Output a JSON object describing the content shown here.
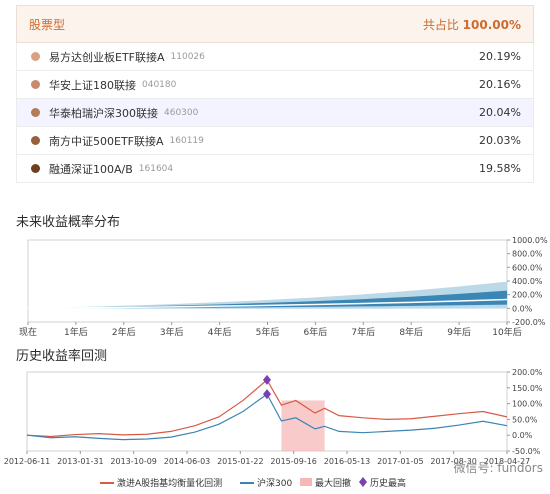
{
  "portfolio": {
    "type_label": "股票型",
    "total_label": "共占比",
    "total_pct": "100.00%",
    "funds": [
      {
        "name": "易方达创业板ETF联接A",
        "code": "110026",
        "weight": "20.19%",
        "color": "#d9a182"
      },
      {
        "name": "华安上证180联接",
        "code": "040180",
        "weight": "20.16%",
        "color": "#c98a69"
      },
      {
        "name": "华泰柏瑞沪深300联接",
        "code": "460300",
        "weight": "20.04%",
        "color": "#b77a56"
      },
      {
        "name": "南方中证500ETF联接A",
        "code": "160119",
        "weight": "20.03%",
        "color": "#95603c"
      },
      {
        "name": "融通深证100A/B",
        "code": "161604",
        "weight": "19.58%",
        "color": "#6f3f1f"
      }
    ]
  },
  "future": {
    "title": "未来收益概率分布",
    "chart_data": {
      "type": "area",
      "x_ticks": [
        "现在",
        "1年后",
        "2年后",
        "3年后",
        "4年后",
        "5年后",
        "6年后",
        "7年后",
        "8年后",
        "9年后",
        "10年后"
      ],
      "y_ticks": [
        "1000.0%",
        "800.0%",
        "600.0%",
        "400.0%",
        "200.0%",
        "0.0%",
        "-200.0%"
      ],
      "ylim": [
        -200,
        1000
      ],
      "x": [
        0,
        1,
        2,
        3,
        4,
        5,
        6,
        7,
        8,
        9,
        10
      ],
      "upper_outer": [
        0,
        18,
        38,
        62,
        90,
        122,
        160,
        205,
        258,
        320,
        390
      ],
      "upper_inner": [
        0,
        12,
        25,
        40,
        58,
        80,
        105,
        135,
        170,
        212,
        260
      ],
      "median": [
        0,
        6,
        13,
        22,
        32,
        43,
        56,
        71,
        88,
        107,
        130
      ],
      "lower_inner": [
        0,
        1,
        3,
        6,
        10,
        15,
        21,
        28,
        36,
        45,
        55
      ],
      "lower_outer": [
        0,
        -3,
        -5,
        -6,
        -7,
        -7,
        -7,
        -6,
        -5,
        -4,
        -3
      ],
      "colors": {
        "outer": "#bcd9e8",
        "inner": "#3a86b5",
        "median": "#ffffff"
      }
    }
  },
  "history": {
    "title": "历史收益率回测",
    "watermark": "微信号: fundors",
    "chart_data": {
      "type": "line",
      "x_ticks": [
        "2012-06-11",
        "2013-01-31",
        "2013-10-09",
        "2014-06-03",
        "2015-01-22",
        "2015-09-16",
        "2016-05-13",
        "2017-01-05",
        "2017-08-30",
        "2018-04-27"
      ],
      "y_ticks": [
        "200.0%",
        "150.0%",
        "100.0%",
        "50.0%",
        "0.0%",
        "-50.0%"
      ],
      "ylim": [
        -50,
        200
      ],
      "x": [
        0,
        0.05,
        0.1,
        0.15,
        0.2,
        0.25,
        0.3,
        0.35,
        0.4,
        0.45,
        0.5,
        0.53,
        0.56,
        0.6,
        0.62,
        0.65,
        0.7,
        0.75,
        0.8,
        0.85,
        0.9,
        0.95,
        1.0
      ],
      "series": [
        {
          "name": "激进A股指基均衡量化回测",
          "color": "#d65a45",
          "values": [
            0,
            -4,
            2,
            5,
            1,
            3,
            12,
            30,
            58,
            110,
            175,
            95,
            110,
            70,
            85,
            62,
            55,
            50,
            52,
            60,
            68,
            75,
            58
          ]
        },
        {
          "name": "沪深300",
          "color": "#3c84b3",
          "values": [
            0,
            -8,
            -5,
            -10,
            -14,
            -12,
            -6,
            10,
            35,
            75,
            130,
            45,
            55,
            20,
            28,
            12,
            8,
            12,
            16,
            22,
            32,
            44,
            30
          ]
        }
      ],
      "drawdown_label": "最大回撤",
      "drawdown_range": [
        0.53,
        0.62
      ],
      "drawdown_color": "#f5b8b8",
      "peak_label": "历史最高",
      "peak_color": "#7b3fb5"
    }
  }
}
